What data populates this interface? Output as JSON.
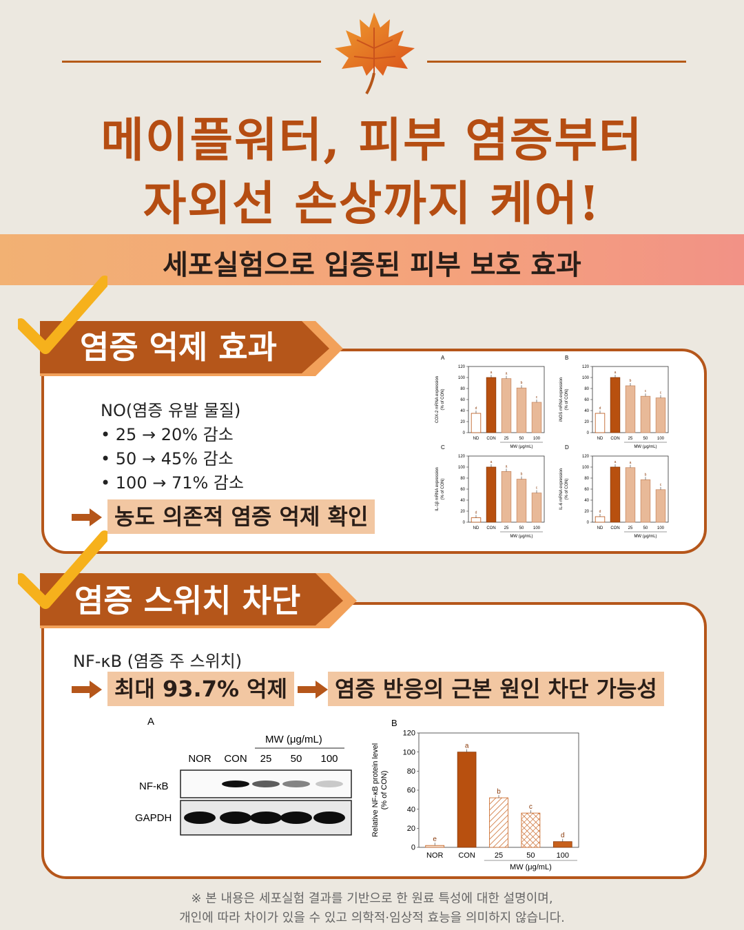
{
  "title": {
    "line1": "메이플워터, 피부 염증부터",
    "line2": "자외선 손상까지 케어!"
  },
  "banner": "세포실험으로 입증된 피부 보호 효과",
  "section1": {
    "tab": "염증 억제 효과",
    "heading": "NO(염증 유발 물질)",
    "bullets": [
      "• 25 → 20% 감소",
      "• 50 → 45% 감소",
      "• 100 → 71% 감소"
    ],
    "conclusion": "농도 의존적 염증 억제 확인"
  },
  "section2": {
    "tab": "염증 스위치 차단",
    "heading": "NF-κB (염증 주 스위치)",
    "result": "최대 93.7% 억제",
    "conclusion": "염증 반응의 근본 원인 차단 가능성",
    "blot": {
      "panel": "A",
      "mw_label": "MW (μg/mL)",
      "lanes": [
        "NOR",
        "CON",
        "25",
        "50",
        "100"
      ],
      "rows": [
        "NF-κB",
        "GAPDH"
      ]
    }
  },
  "footer": {
    "line1": "※ 본 내용은 세포실험 결과를 기반으로 한 원료 특성에 대한 설명이며,",
    "line2": "개인에 따라 차이가 있을 수 있고 의학적·임상적 효능을 의미하지 않습니다."
  },
  "colors": {
    "accent": "#b5561a",
    "title": "#b54d12",
    "bar_dark": "#b8500f",
    "bar_light": "#e8b998",
    "highlight": "#f2c7a2"
  },
  "icons": {
    "leaf": "maple-leaf-icon",
    "check": "check-mark-icon",
    "arrow": "right-arrow-icon"
  },
  "chart_data": [
    {
      "type": "bar",
      "panel": "A",
      "ylabel": "COX-2 mRNA expression\n(% of CON)",
      "xlabel": "MW (μg/mL)",
      "categories": [
        "ND",
        "CON",
        "25",
        "50",
        "100"
      ],
      "values": [
        35,
        100,
        98,
        81,
        55
      ],
      "letters": [
        "d",
        "a",
        "a",
        "b",
        "c"
      ],
      "ylim": [
        0,
        120
      ],
      "yticks": [
        0,
        20,
        40,
        60,
        80,
        100,
        120
      ]
    },
    {
      "type": "bar",
      "panel": "B",
      "ylabel": "iNOS mRNA expression\n(% of CON)",
      "xlabel": "MW (μg/mL)",
      "categories": [
        "ND",
        "CON",
        "25",
        "50",
        "100"
      ],
      "values": [
        35,
        100,
        85,
        66,
        63
      ],
      "letters": [
        "d",
        "a",
        "b",
        "c",
        "c"
      ],
      "ylim": [
        0,
        120
      ],
      "yticks": [
        0,
        20,
        40,
        60,
        80,
        100,
        120
      ]
    },
    {
      "type": "bar",
      "panel": "C",
      "ylabel": "IL-1β mRNA expression\n(% of CON)",
      "xlabel": "MW (μg/mL)",
      "categories": [
        "ND",
        "CON",
        "25",
        "50",
        "100"
      ],
      "values": [
        8,
        100,
        92,
        78,
        53
      ],
      "letters": [
        "d",
        "a",
        "a",
        "b",
        "c"
      ],
      "ylim": [
        0,
        120
      ],
      "yticks": [
        0,
        20,
        40,
        60,
        80,
        100,
        120
      ]
    },
    {
      "type": "bar",
      "panel": "D",
      "ylabel": "IL-6 mRNA expression\n(% of CON)",
      "xlabel": "MW (μg/mL)",
      "categories": [
        "ND",
        "CON",
        "25",
        "50",
        "100"
      ],
      "values": [
        10,
        100,
        99,
        77,
        59
      ],
      "letters": [
        "d",
        "a",
        "a",
        "b",
        "c"
      ],
      "ylim": [
        0,
        120
      ],
      "yticks": [
        0,
        20,
        40,
        60,
        80,
        100,
        120
      ]
    },
    {
      "type": "bar",
      "panel": "B",
      "ylabel": "Relative NF-κB protein level\n(% of CON)",
      "xlabel": "MW (μg/mL)",
      "categories": [
        "NOR",
        "CON",
        "25",
        "50",
        "100"
      ],
      "values": [
        2,
        100,
        52,
        36,
        6
      ],
      "letters": [
        "e",
        "a",
        "b",
        "c",
        "d"
      ],
      "ylim": [
        0,
        120
      ],
      "yticks": [
        0,
        20,
        40,
        60,
        80,
        100,
        120
      ]
    }
  ]
}
